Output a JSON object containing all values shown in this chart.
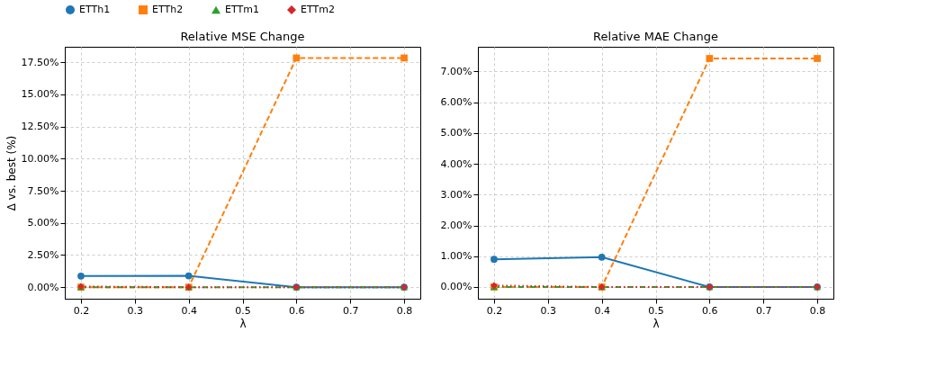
{
  "chart_data": [
    {
      "type": "line",
      "title": "Relative MSE Change",
      "xlabel": "λ",
      "ylabel": "Δ vs. best (%)",
      "legend": "top",
      "grid": true,
      "x": [
        0.2,
        0.4,
        0.6,
        0.8
      ],
      "xlim": [
        0.17,
        0.83
      ],
      "xticks": [
        0.2,
        0.3,
        0.4,
        0.5,
        0.6,
        0.7,
        0.8
      ],
      "ylim": [
        -0.9,
        18.7
      ],
      "yticks": [
        {
          "value": 0,
          "label": "0.00%"
        },
        {
          "value": 2.5,
          "label": "2.50%"
        },
        {
          "value": 5,
          "label": "5.00%"
        },
        {
          "value": 7.5,
          "label": "7.50%"
        },
        {
          "value": 10,
          "label": "10.00%"
        },
        {
          "value": 12.5,
          "label": "12.50%"
        },
        {
          "value": 15,
          "label": "15.00%"
        },
        {
          "value": 17.5,
          "label": "17.50%"
        }
      ],
      "series": [
        {
          "name": "ETTh1",
          "color": "#1f77b4",
          "marker": "circle",
          "line_style": "solid",
          "values": [
            0.86,
            0.88,
            0.0,
            0.0
          ]
        },
        {
          "name": "ETTh2",
          "color": "#ff7f0e",
          "marker": "square",
          "line_style": "dashed",
          "values": [
            0.0,
            0.0,
            17.83,
            17.83
          ]
        },
        {
          "name": "ETTm1",
          "color": "#2ca02c",
          "marker": "triangle",
          "line_style": "dashdot",
          "values": [
            0.0,
            0.0,
            0.0,
            0.0
          ]
        },
        {
          "name": "ETTm2",
          "color": "#d62728",
          "marker": "diamond",
          "line_style": "dotted",
          "values": [
            0.05,
            0.0,
            0.0,
            0.0
          ]
        }
      ]
    },
    {
      "type": "line",
      "title": "Relative MAE Change",
      "xlabel": "λ",
      "grid": true,
      "x": [
        0.2,
        0.4,
        0.6,
        0.8
      ],
      "xlim": [
        0.17,
        0.83
      ],
      "xticks": [
        0.2,
        0.3,
        0.4,
        0.5,
        0.6,
        0.7,
        0.8
      ],
      "ylim": [
        -0.38,
        7.8
      ],
      "yticks": [
        {
          "value": 0,
          "label": "0.00%"
        },
        {
          "value": 1,
          "label": "1.00%"
        },
        {
          "value": 2,
          "label": "2.00%"
        },
        {
          "value": 3,
          "label": "3.00%"
        },
        {
          "value": 4,
          "label": "4.00%"
        },
        {
          "value": 5,
          "label": "5.00%"
        },
        {
          "value": 6,
          "label": "6.00%"
        },
        {
          "value": 7,
          "label": "7.00%"
        }
      ],
      "series": [
        {
          "name": "ETTh1",
          "color": "#1f77b4",
          "marker": "circle",
          "line_style": "solid",
          "values": [
            0.9,
            0.97,
            0.0,
            0.0
          ]
        },
        {
          "name": "ETTh2",
          "color": "#ff7f0e",
          "marker": "square",
          "line_style": "dashed",
          "values": [
            0.0,
            0.0,
            7.42,
            7.42
          ]
        },
        {
          "name": "ETTm1",
          "color": "#2ca02c",
          "marker": "triangle",
          "line_style": "dashdot",
          "values": [
            0.0,
            0.0,
            0.0,
            0.0
          ]
        },
        {
          "name": "ETTm2",
          "color": "#d62728",
          "marker": "diamond",
          "line_style": "dotted",
          "values": [
            0.05,
            0.0,
            0.0,
            0.0
          ]
        }
      ]
    }
  ]
}
